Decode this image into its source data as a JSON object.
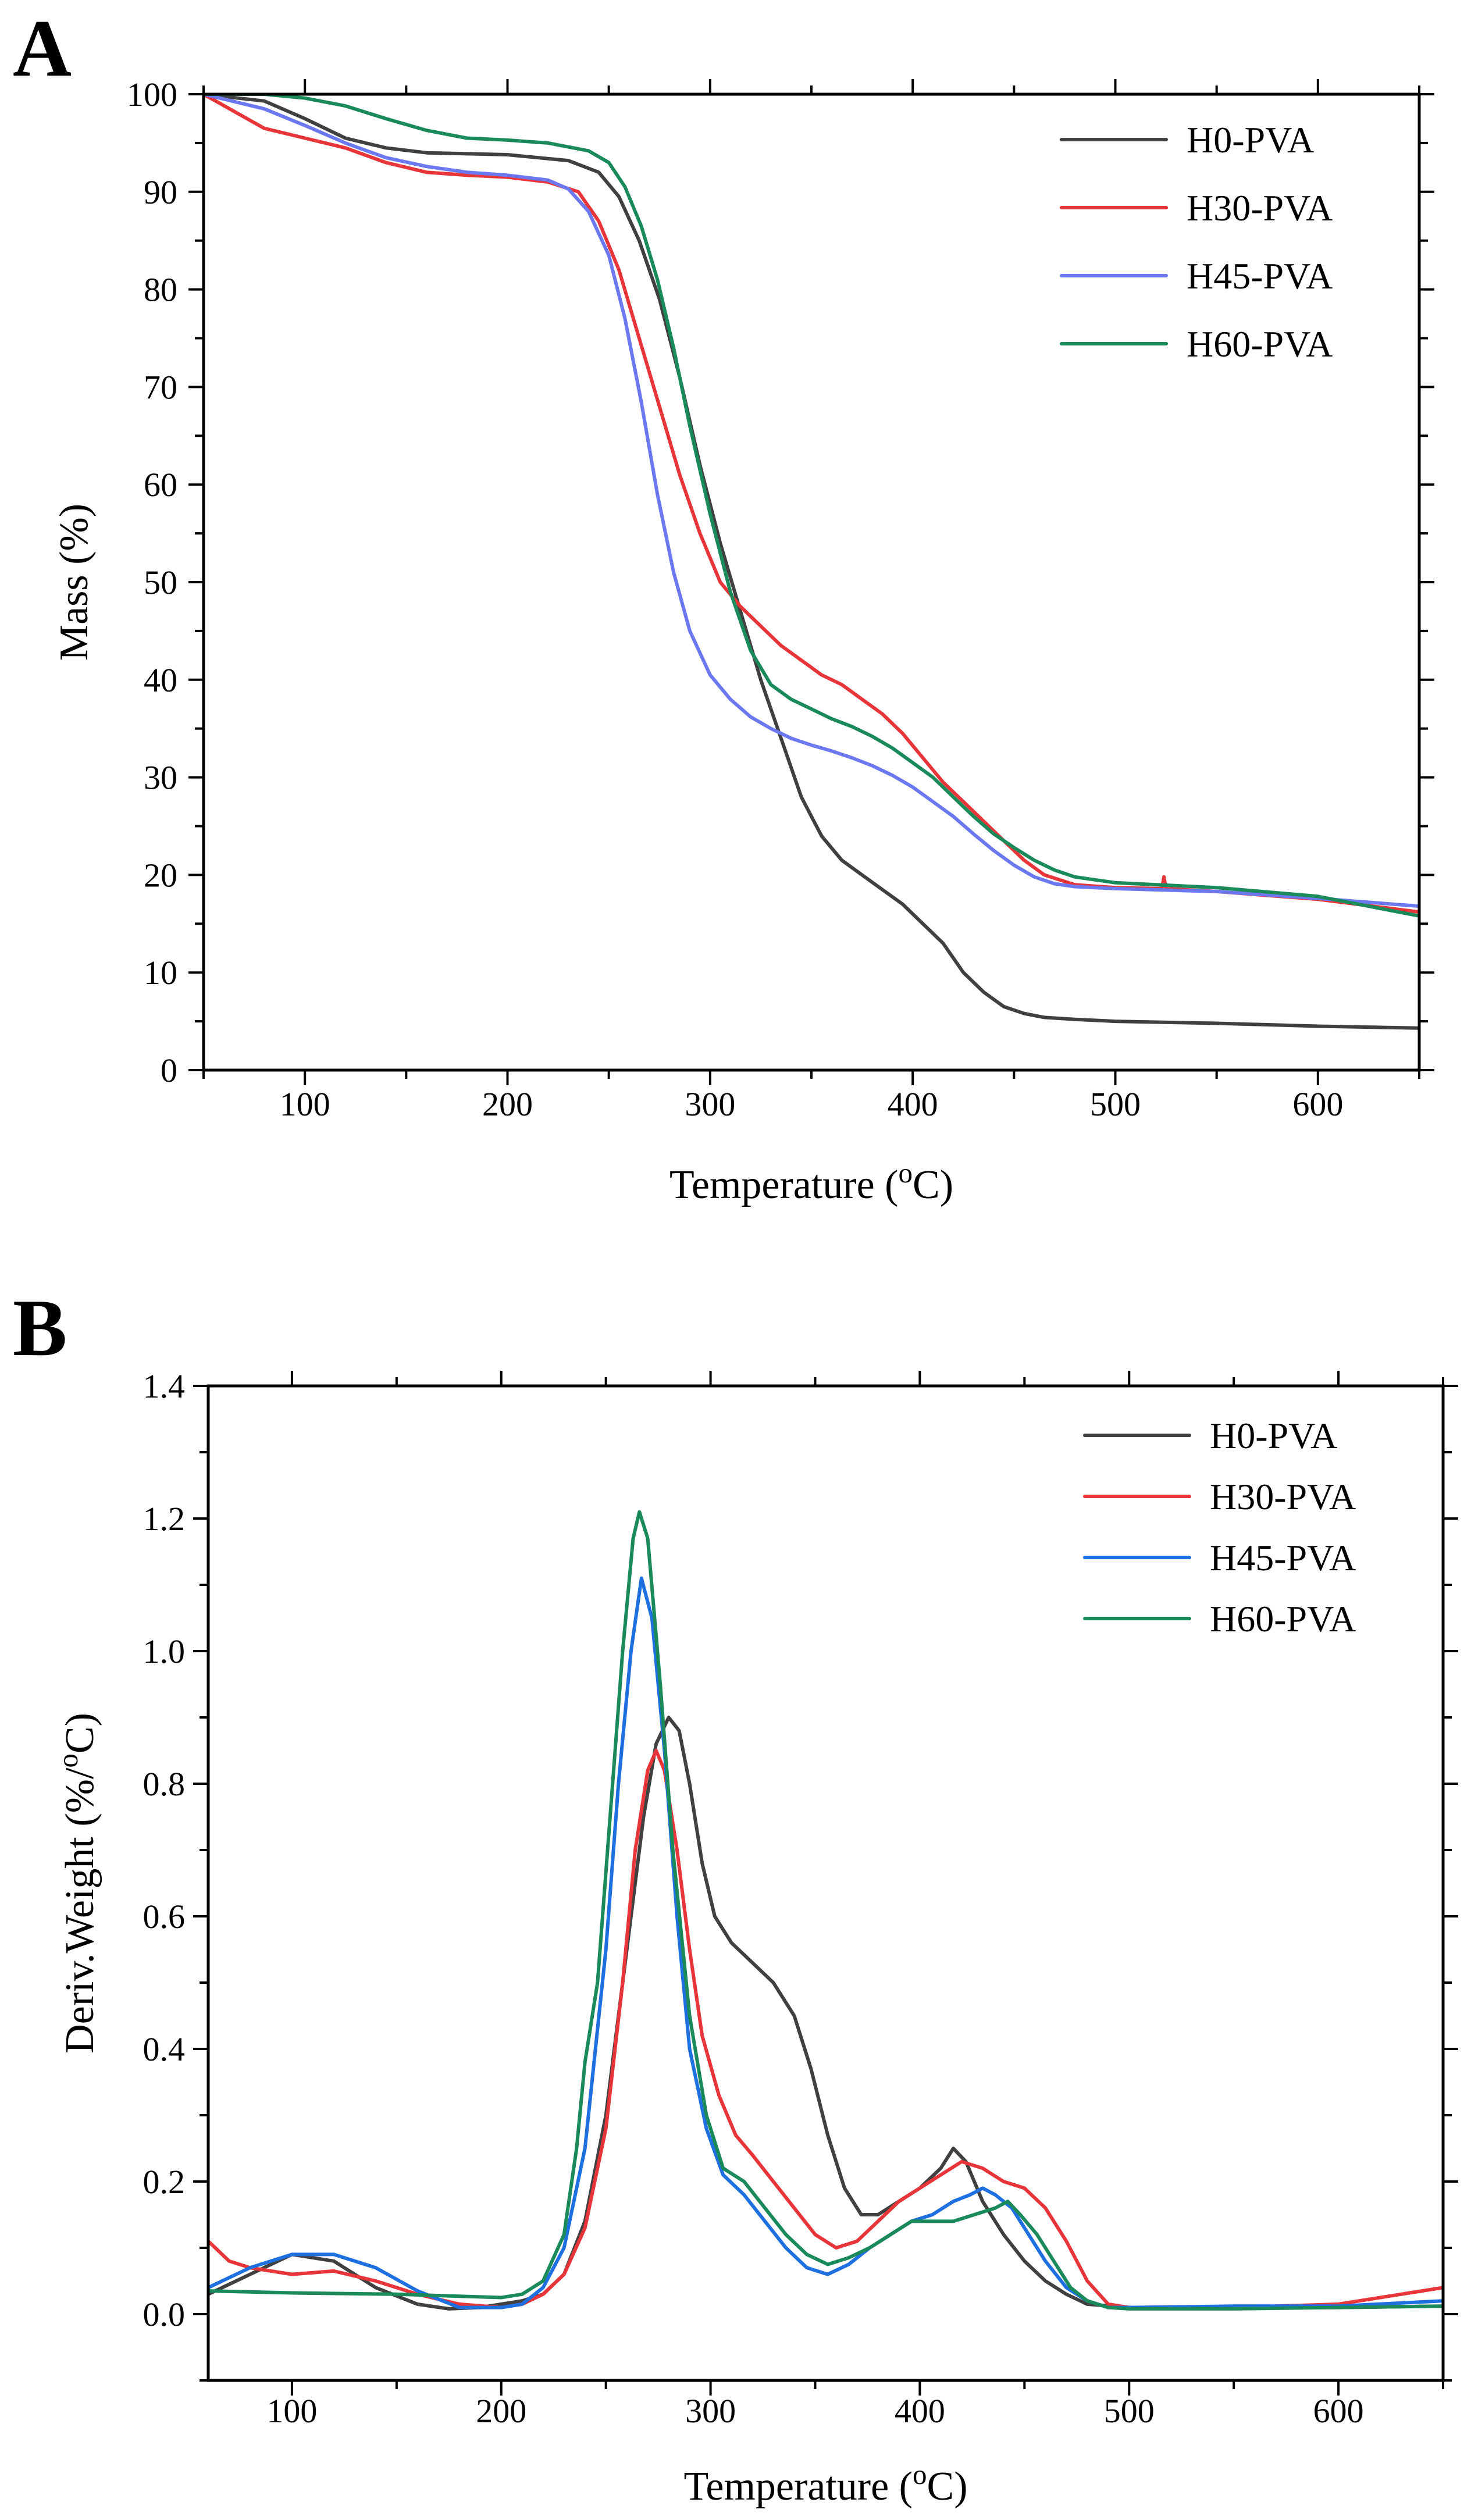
{
  "chart_data": [
    {
      "panel": "A",
      "type": "line",
      "title": "",
      "xlabel": "Temperature (oC)",
      "ylabel": "Mass (%)",
      "xlim": [
        50,
        650
      ],
      "ylim": [
        0,
        100
      ],
      "xticks": [
        100,
        200,
        300,
        400,
        500,
        600
      ],
      "yticks": [
        0,
        10,
        20,
        30,
        40,
        50,
        60,
        70,
        80,
        90,
        100
      ],
      "legend_position": "top-right",
      "series": [
        {
          "name": "H0-PVA",
          "color": "#404040",
          "x": [
            50,
            80,
            100,
            120,
            140,
            160,
            200,
            230,
            245,
            255,
            265,
            275,
            285,
            295,
            305,
            315,
            325,
            335,
            345,
            355,
            365,
            375,
            385,
            395,
            405,
            415,
            425,
            435,
            445,
            455,
            465,
            480,
            500,
            550,
            600,
            650
          ],
          "y": [
            100,
            99.3,
            97.5,
            95.5,
            94.5,
            94,
            93.8,
            93.2,
            92,
            89.5,
            85,
            79,
            71,
            62,
            54,
            47,
            40,
            34,
            28,
            24,
            21.5,
            20,
            18.5,
            17,
            15,
            13,
            10,
            8,
            6.5,
            5.8,
            5.4,
            5.2,
            5,
            4.8,
            4.5,
            4.3
          ]
        },
        {
          "name": "H30-PVA",
          "color": "#e8353a",
          "x": [
            50,
            80,
            100,
            120,
            140,
            160,
            180,
            200,
            220,
            235,
            245,
            255,
            265,
            275,
            285,
            295,
            305,
            315,
            325,
            335,
            345,
            355,
            365,
            375,
            385,
            395,
            405,
            415,
            425,
            435,
            445,
            455,
            465,
            480,
            500,
            523,
            524,
            525,
            550,
            600,
            650
          ],
          "y": [
            100,
            96.5,
            95.5,
            94.5,
            93,
            92,
            91.7,
            91.5,
            91,
            90,
            87,
            82,
            75,
            68,
            61,
            55,
            50,
            47.5,
            45.5,
            43.5,
            42,
            40.5,
            39.5,
            38,
            36.5,
            34.5,
            32,
            29.5,
            27.5,
            25.5,
            23.5,
            21.5,
            20,
            19,
            18.7,
            18.6,
            19.8,
            18.6,
            18.3,
            17.5,
            16.2
          ]
        },
        {
          "name": "H45-PVA",
          "color": "#6b78f0",
          "x": [
            50,
            80,
            100,
            120,
            140,
            160,
            180,
            200,
            220,
            230,
            240,
            250,
            258,
            266,
            274,
            282,
            290,
            300,
            310,
            320,
            330,
            340,
            350,
            360,
            370,
            380,
            390,
            400,
            410,
            420,
            430,
            440,
            450,
            460,
            470,
            480,
            500,
            550,
            600,
            650
          ],
          "y": [
            100,
            98.5,
            96.8,
            95,
            93.5,
            92.6,
            92,
            91.7,
            91.2,
            90.3,
            88,
            83.5,
            77,
            68.5,
            59,
            51,
            45,
            40.5,
            38,
            36.2,
            35,
            34,
            33.3,
            32.7,
            32,
            31.2,
            30.2,
            29,
            27.5,
            26,
            24.2,
            22.5,
            21,
            19.8,
            19.1,
            18.8,
            18.6,
            18.3,
            17.6,
            16.8
          ]
        },
        {
          "name": "H60-PVA",
          "color": "#1a8a5a",
          "x": [
            50,
            80,
            100,
            120,
            140,
            160,
            180,
            200,
            220,
            240,
            250,
            258,
            266,
            274,
            282,
            290,
            300,
            310,
            320,
            330,
            340,
            350,
            360,
            370,
            380,
            390,
            400,
            410,
            420,
            430,
            440,
            450,
            460,
            470,
            480,
            500,
            550,
            600,
            650
          ],
          "y": [
            100,
            100,
            99.6,
            98.8,
            97.5,
            96.3,
            95.5,
            95.3,
            95,
            94.2,
            93,
            90.5,
            86.5,
            81,
            74,
            66,
            57,
            49,
            43,
            39.5,
            38,
            37,
            36,
            35.2,
            34.2,
            33,
            31.5,
            30,
            28,
            26,
            24.2,
            22.8,
            21.5,
            20.5,
            19.8,
            19.2,
            18.7,
            17.8,
            15.8
          ]
        }
      ]
    },
    {
      "panel": "B",
      "type": "line",
      "title": "",
      "xlabel": "Temperature (oC)",
      "ylabel": "Deriv.Weight (%/oC)",
      "xlim": [
        60,
        650
      ],
      "ylim": [
        -0.1,
        1.4
      ],
      "xticks": [
        100,
        200,
        300,
        400,
        500,
        600
      ],
      "yticks": [
        0.0,
        0.2,
        0.4,
        0.6,
        0.8,
        1.0,
        1.2,
        1.4
      ],
      "legend_position": "top-right",
      "series": [
        {
          "name": "H0-PVA",
          "color": "#404040",
          "x": [
            60,
            80,
            100,
            120,
            140,
            160,
            175,
            190,
            200,
            210,
            220,
            230,
            240,
            250,
            260,
            268,
            274,
            280,
            285,
            290,
            296,
            302,
            310,
            320,
            330,
            340,
            348,
            356,
            364,
            372,
            380,
            390,
            400,
            410,
            416,
            422,
            430,
            440,
            450,
            460,
            470,
            480,
            500,
            550,
            600,
            650
          ],
          "y": [
            0.03,
            0.06,
            0.09,
            0.08,
            0.04,
            0.015,
            0.008,
            0.01,
            0.015,
            0.02,
            0.03,
            0.06,
            0.14,
            0.3,
            0.55,
            0.75,
            0.86,
            0.9,
            0.88,
            0.8,
            0.68,
            0.6,
            0.56,
            0.53,
            0.5,
            0.45,
            0.37,
            0.27,
            0.19,
            0.15,
            0.15,
            0.17,
            0.19,
            0.22,
            0.25,
            0.23,
            0.17,
            0.12,
            0.08,
            0.05,
            0.03,
            0.015,
            0.01,
            0.01,
            0.01,
            0.012
          ]
        },
        {
          "name": "H30-PVA",
          "color": "#e8353a",
          "x": [
            60,
            70,
            80,
            100,
            120,
            140,
            160,
            180,
            200,
            210,
            220,
            230,
            240,
            250,
            258,
            264,
            270,
            274,
            278,
            284,
            290,
            296,
            304,
            312,
            320,
            330,
            340,
            350,
            360,
            370,
            380,
            390,
            400,
            410,
            420,
            430,
            440,
            450,
            460,
            470,
            480,
            490,
            500,
            550,
            600,
            650
          ],
          "y": [
            0.11,
            0.08,
            0.07,
            0.06,
            0.065,
            0.05,
            0.03,
            0.015,
            0.01,
            0.015,
            0.03,
            0.06,
            0.13,
            0.28,
            0.5,
            0.7,
            0.82,
            0.85,
            0.82,
            0.7,
            0.55,
            0.42,
            0.33,
            0.27,
            0.24,
            0.2,
            0.16,
            0.12,
            0.1,
            0.11,
            0.14,
            0.17,
            0.19,
            0.21,
            0.23,
            0.22,
            0.2,
            0.19,
            0.16,
            0.11,
            0.05,
            0.015,
            0.01,
            0.01,
            0.015,
            0.04
          ]
        },
        {
          "name": "H45-PVA",
          "color": "#1e6fe0",
          "x": [
            60,
            80,
            100,
            120,
            140,
            160,
            180,
            200,
            210,
            220,
            230,
            240,
            250,
            256,
            262,
            267,
            272,
            278,
            284,
            290,
            298,
            306,
            316,
            326,
            336,
            346,
            356,
            366,
            376,
            386,
            396,
            406,
            416,
            424,
            430,
            436,
            444,
            452,
            460,
            470,
            480,
            490,
            500,
            550,
            600,
            650
          ],
          "y": [
            0.04,
            0.07,
            0.09,
            0.09,
            0.07,
            0.035,
            0.01,
            0.01,
            0.015,
            0.04,
            0.1,
            0.25,
            0.55,
            0.8,
            1.0,
            1.11,
            1.05,
            0.85,
            0.6,
            0.4,
            0.28,
            0.21,
            0.18,
            0.14,
            0.1,
            0.07,
            0.06,
            0.075,
            0.1,
            0.12,
            0.14,
            0.15,
            0.17,
            0.18,
            0.19,
            0.18,
            0.16,
            0.12,
            0.08,
            0.04,
            0.02,
            0.01,
            0.01,
            0.012,
            0.012,
            0.02
          ]
        },
        {
          "name": "H60-PVA",
          "color": "#1a8a5a",
          "x": [
            60,
            100,
            150,
            200,
            210,
            220,
            230,
            236,
            240,
            246,
            252,
            258,
            263,
            266,
            270,
            276,
            282,
            290,
            298,
            306,
            316,
            326,
            336,
            346,
            356,
            366,
            376,
            386,
            396,
            406,
            416,
            426,
            436,
            442,
            448,
            456,
            464,
            472,
            480,
            490,
            500,
            550,
            600,
            650
          ],
          "y": [
            0.035,
            0.032,
            0.03,
            0.025,
            0.03,
            0.05,
            0.12,
            0.25,
            0.38,
            0.5,
            0.75,
            1.0,
            1.17,
            1.21,
            1.17,
            0.95,
            0.7,
            0.45,
            0.3,
            0.22,
            0.2,
            0.16,
            0.12,
            0.09,
            0.075,
            0.085,
            0.1,
            0.12,
            0.14,
            0.14,
            0.14,
            0.15,
            0.16,
            0.17,
            0.15,
            0.12,
            0.08,
            0.04,
            0.02,
            0.01,
            0.008,
            0.008,
            0.01,
            0.012
          ]
        }
      ]
    }
  ]
}
